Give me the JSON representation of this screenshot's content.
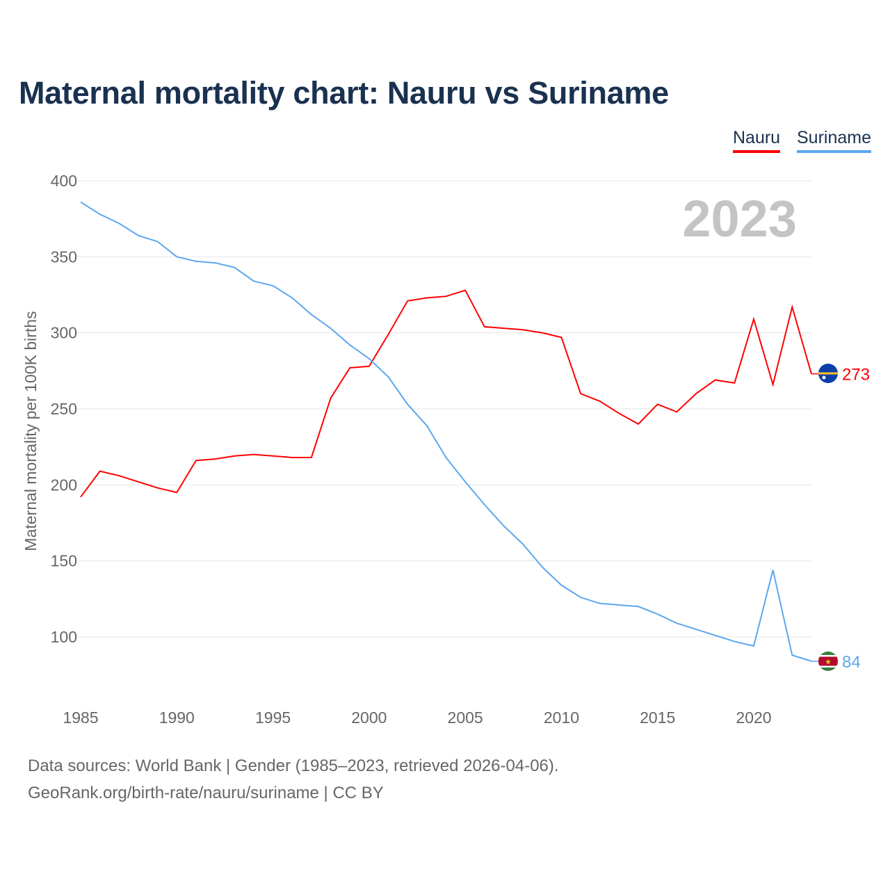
{
  "title": "Maternal mortality chart: Nauru vs Suriname",
  "footer": {
    "line1": "Data sources: World Bank | Gender (1985–2023, retrieved 2026-04-06).",
    "line2": "GeoRank.org/birth-rate/nauru/suriname | CC BY"
  },
  "chart_data": {
    "type": "line",
    "title": "Maternal mortality chart: Nauru vs Suriname",
    "xlabel": "",
    "ylabel": "Maternal mortality per 100K births",
    "year_label": "2023",
    "xlim": [
      1985,
      2023
    ],
    "ylim": [
      70,
      400
    ],
    "xticks": [
      1985,
      1990,
      1995,
      2000,
      2005,
      2010,
      2015,
      2020
    ],
    "yticks": [
      100,
      150,
      200,
      250,
      300,
      350,
      400
    ],
    "grid": true,
    "legend_position": "top-right",
    "x": [
      1985,
      1986,
      1987,
      1988,
      1989,
      1990,
      1991,
      1992,
      1993,
      1994,
      1995,
      1996,
      1997,
      1998,
      1999,
      2000,
      2001,
      2002,
      2003,
      2004,
      2005,
      2006,
      2007,
      2008,
      2009,
      2010,
      2011,
      2012,
      2013,
      2014,
      2015,
      2016,
      2017,
      2018,
      2019,
      2020,
      2021,
      2022,
      2023
    ],
    "series": [
      {
        "name": "Nauru",
        "color": "#ff0000",
        "end_label": "273",
        "flag": "nauru-flag",
        "values": [
          192,
          209,
          206,
          202,
          198,
          195,
          216,
          217,
          219,
          220,
          219,
          218,
          218,
          257,
          277,
          278,
          299,
          321,
          323,
          324,
          328,
          304,
          303,
          302,
          300,
          297,
          260,
          255,
          247,
          240,
          253,
          248,
          260,
          269,
          267,
          309,
          266,
          317,
          273
        ]
      },
      {
        "name": "Suriname",
        "color": "#5ba7ef",
        "end_label": "84",
        "flag": "suriname-flag",
        "values": [
          386,
          378,
          372,
          364,
          360,
          350,
          347,
          346,
          343,
          334,
          331,
          323,
          312,
          303,
          292,
          283,
          271,
          253,
          239,
          218,
          202,
          187,
          173,
          161,
          146,
          134,
          126,
          122,
          121,
          120,
          115,
          109,
          105,
          101,
          97,
          94,
          144,
          88,
          84
        ]
      }
    ]
  }
}
